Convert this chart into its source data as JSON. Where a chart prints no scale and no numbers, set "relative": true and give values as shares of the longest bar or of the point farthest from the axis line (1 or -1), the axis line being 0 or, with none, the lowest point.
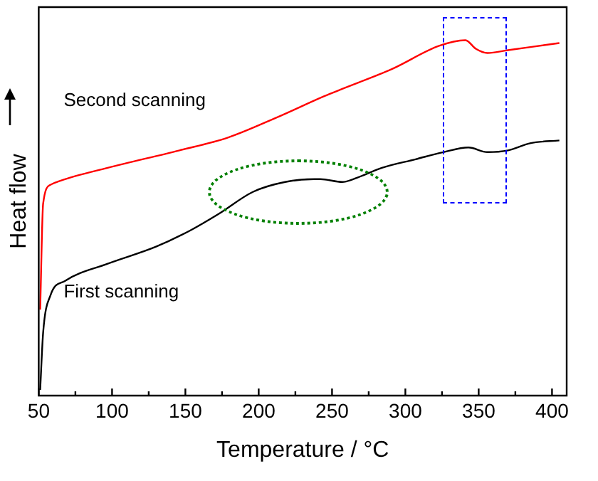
{
  "chart_data": {
    "type": "line",
    "xlabel": "Temperature / °C",
    "ylabel": "Heat flow",
    "relative": true,
    "xlim": [
      50,
      410
    ],
    "xticks": [
      50,
      {
        "value": 75,
        "label": null
      },
      100,
      {
        "value": 125,
        "label": null
      },
      150,
      {
        "value": 175,
        "label": null
      },
      200,
      {
        "value": 225,
        "label": null
      },
      250,
      {
        "value": 275,
        "label": null
      },
      300,
      {
        "value": 325,
        "label": null
      },
      350,
      {
        "value": 375,
        "label": null
      },
      400
    ],
    "grid": false,
    "legend": false,
    "marker": "none",
    "line_style": "solid",
    "series": [
      {
        "name": "Second scanning",
        "color": "#ff0000",
        "x": [
          51,
          53,
          58,
          65,
          97,
          146,
          179,
          212,
          245,
          257,
          291,
          323,
          341,
          348,
          356,
          370,
          405
        ],
        "values": [
          0.242,
          0.54,
          0.593,
          0.605,
          0.641,
          0.69,
          0.726,
          0.782,
          0.843,
          0.863,
          0.919,
          0.984,
          1,
          0.976,
          0.964,
          0.972,
          0.992
        ]
      },
      {
        "name": "First scanning",
        "color": "#000000",
        "x": [
          51,
          53,
          58,
          68,
          97,
          130,
          153,
          173,
          196,
          218,
          238,
          242,
          257,
          267,
          284,
          307,
          326,
          343,
          356,
          370,
          385,
          405
        ],
        "values": [
          0.016,
          0.177,
          0.282,
          0.323,
          0.371,
          0.419,
          0.464,
          0.512,
          0.573,
          0.601,
          0.609,
          0.609,
          0.601,
          0.613,
          0.641,
          0.665,
          0.685,
          0.698,
          0.685,
          0.69,
          0.71,
          0.718
        ]
      }
    ]
  }
}
